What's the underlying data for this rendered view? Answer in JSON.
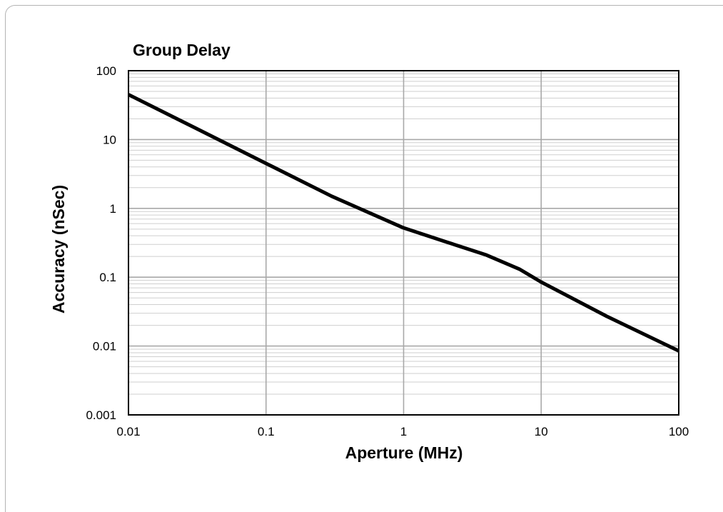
{
  "chart_data": {
    "type": "line",
    "title": "Group Delay",
    "xlabel": "Aperture (MHz)",
    "ylabel": "Accuracy (nSec)",
    "x_scale": "log",
    "y_scale": "log",
    "xlim": [
      0.01,
      100
    ],
    "ylim": [
      0.001,
      100
    ],
    "x_ticks": [
      "0.01",
      "0.1",
      "1",
      "10",
      "100"
    ],
    "y_ticks": [
      "100",
      "10",
      "1",
      "0.1",
      "0.01",
      "0.001"
    ],
    "grid": true,
    "legend": "none",
    "series": [
      {
        "color": "#000000",
        "x": [
          0.01,
          0.03,
          0.1,
          0.3,
          1,
          2,
          4,
          7,
          10,
          30,
          100
        ],
        "y": [
          45,
          15,
          4.5,
          1.5,
          0.52,
          0.33,
          0.21,
          0.13,
          0.085,
          0.027,
          0.0085
        ]
      }
    ]
  }
}
